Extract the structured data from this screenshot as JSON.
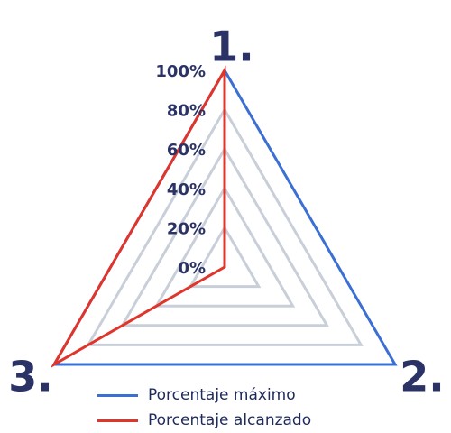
{
  "chart_data": {
    "type": "radar",
    "title": "",
    "axes": [
      "1.",
      "2.",
      "3."
    ],
    "r_ticks": [
      "0%",
      "20%",
      "40%",
      "60%",
      "80%",
      "100%"
    ],
    "r_range": [
      0,
      100
    ],
    "series": [
      {
        "name": "Porcentaje máximo",
        "values": [
          100,
          100,
          100
        ],
        "color": "#3b6fd4"
      },
      {
        "name": "Porcentaje alcanzado",
        "values": [
          100,
          0,
          100
        ],
        "color": "#e0352b"
      }
    ],
    "grid": true,
    "grid_color": "#c9cfd9",
    "label_color": "#2b3266",
    "legend_position": "bottom"
  }
}
